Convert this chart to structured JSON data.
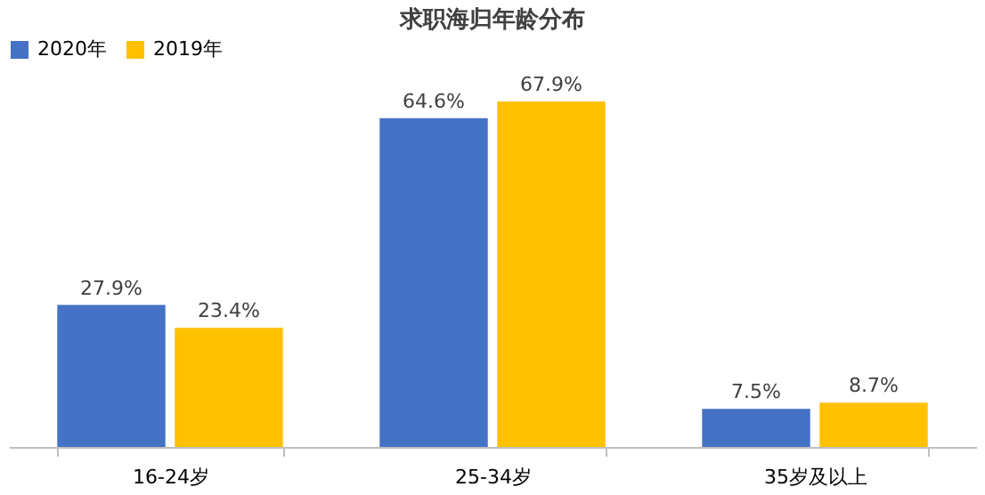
{
  "chart_data": {
    "type": "bar",
    "title": "求职海归年龄分布",
    "categories": [
      "16-24岁",
      "25-34岁",
      "35岁及以上"
    ],
    "series": [
      {
        "name": "2020年",
        "color": "#4472c4",
        "values": [
          27.9,
          64.6,
          7.5
        ],
        "value_labels": [
          "27.9%",
          "64.6%",
          "7.5%"
        ]
      },
      {
        "name": "2019年",
        "color": "#ffc000",
        "values": [
          23.4,
          67.9,
          8.7
        ],
        "value_labels": [
          "23.4%",
          "67.9%",
          "8.7%"
        ]
      }
    ],
    "legend": "top",
    "grid": false,
    "tick_labels": "x"
  }
}
